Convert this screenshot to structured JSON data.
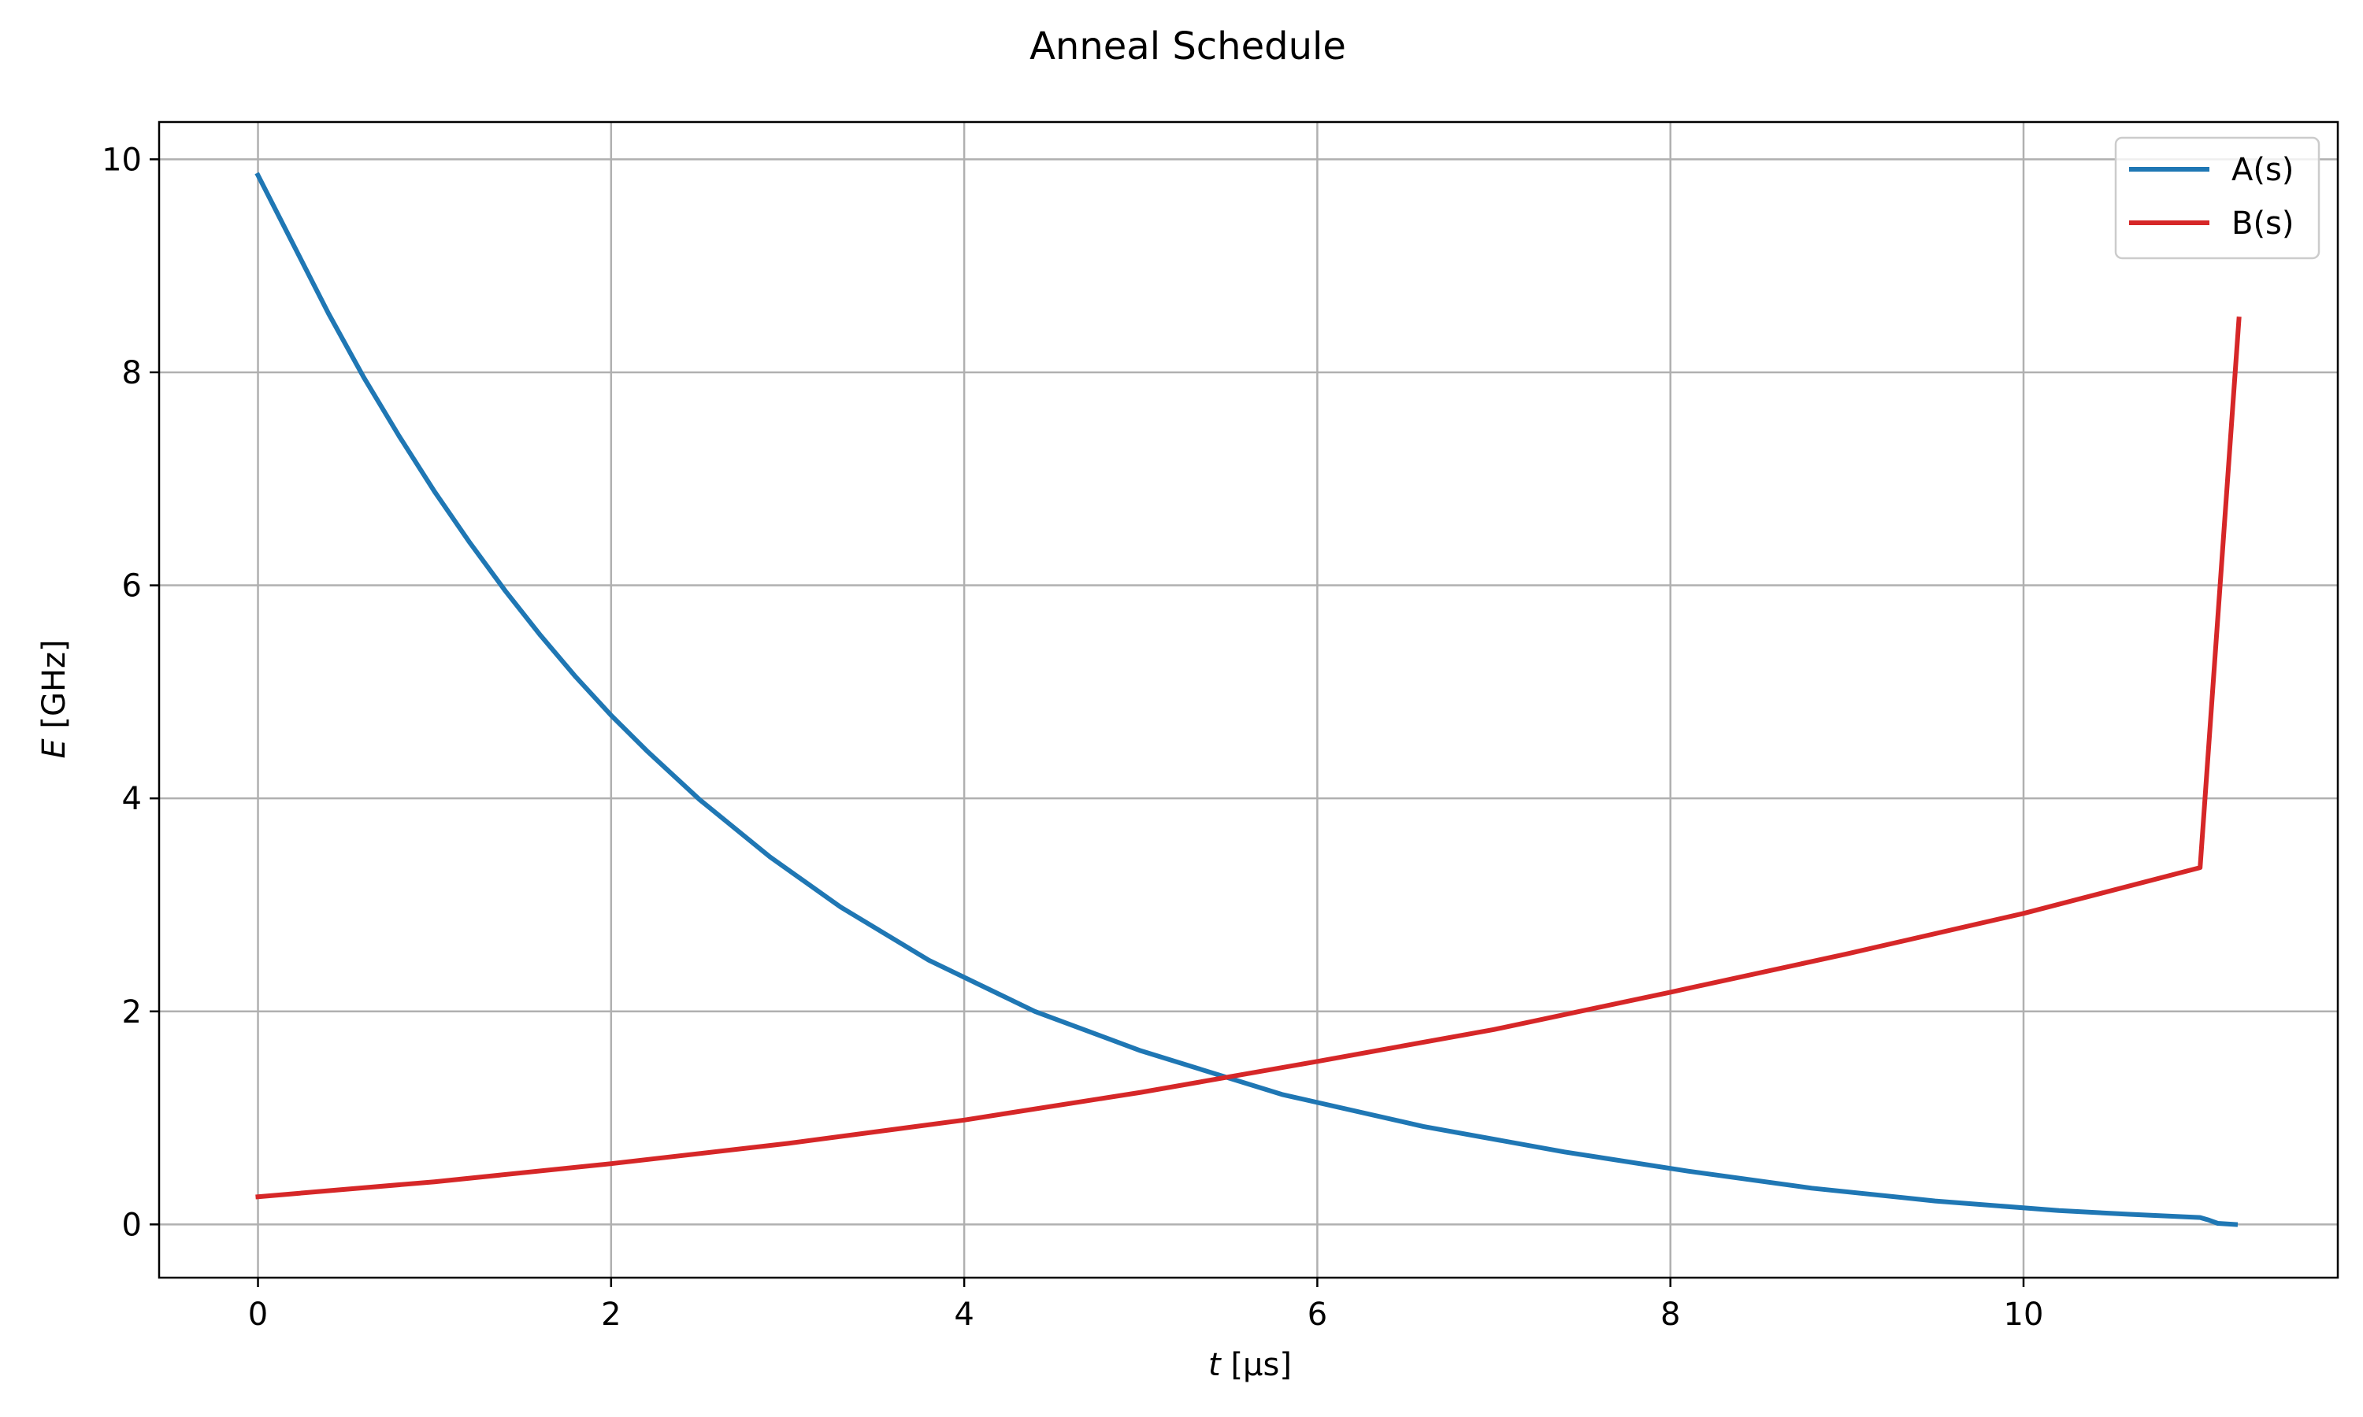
{
  "chart_data": {
    "type": "line",
    "title": "Anneal Schedule",
    "xlabel_var": "t",
    "xlabel_unit": " [μs]",
    "ylabel_var": "E",
    "ylabel_unit": " [GHz]",
    "xlim": [
      -0.56,
      11.78
    ],
    "ylim": [
      -0.5,
      10.35
    ],
    "xticks": [
      0,
      2,
      4,
      6,
      8,
      10
    ],
    "yticks": [
      0,
      2,
      4,
      6,
      8,
      10
    ],
    "grid": true,
    "legend_position": "top-right",
    "series": [
      {
        "name": "A(s)",
        "color": "#1f77b4",
        "x": [
          0,
          0.2,
          0.4,
          0.6,
          0.8,
          1.0,
          1.2,
          1.4,
          1.6,
          1.8,
          2.0,
          2.2,
          2.5,
          2.9,
          3.3,
          3.8,
          4.4,
          5.0,
          5.8,
          6.6,
          7.4,
          8.1,
          8.8,
          9.5,
          10.2,
          10.6,
          11.0,
          11.05,
          11.1,
          11.2
        ],
        "y": [
          9.85,
          9.2,
          8.55,
          7.95,
          7.4,
          6.88,
          6.4,
          5.95,
          5.53,
          5.14,
          4.78,
          4.45,
          3.99,
          3.45,
          2.98,
          2.48,
          2.0,
          1.63,
          1.22,
          0.92,
          0.68,
          0.5,
          0.34,
          0.22,
          0.13,
          0.095,
          0.065,
          0.04,
          0.01,
          0.0
        ]
      },
      {
        "name": "B(s)",
        "color": "#d62728",
        "x": [
          0,
          1,
          2,
          3,
          4,
          5,
          6,
          7,
          8,
          9,
          10,
          11.0,
          11.22
        ],
        "y": [
          0.26,
          0.4,
          0.57,
          0.76,
          0.98,
          1.24,
          1.53,
          1.83,
          2.18,
          2.54,
          2.92,
          3.35,
          8.5
        ]
      }
    ]
  }
}
